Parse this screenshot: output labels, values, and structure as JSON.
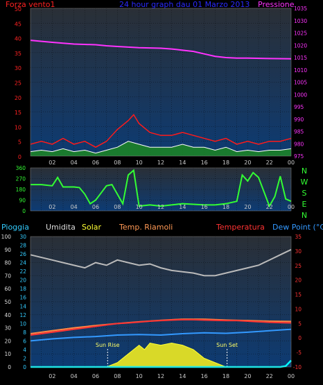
{
  "header": {
    "left_label": "Forza vento1",
    "title": "24 hour graph dau  01 Marzo 2013",
    "right_label": "Pressione"
  },
  "legend": {
    "pioggia": "Pioggia",
    "umidita": "Umidita",
    "solar": "Solar",
    "temp_riamoli": "Temp. Riamoli",
    "temperatura": "Temperatura",
    "dew_point": "Dew Point (°C)"
  },
  "compass": [
    "N",
    "W",
    "S",
    "E",
    "N"
  ],
  "colors": {
    "wind_gust": "#ff1a1a",
    "wind_avg": "#ffffff",
    "wind_fill": "#1e8c1e",
    "pressure": "#ff33ff",
    "direction": "#33ff33",
    "humidity": "#bbbbbb",
    "temperature": "#ff3333",
    "temp_riamoli": "#ff8844",
    "dew_point": "#3399ff",
    "solar": "#ffff33",
    "rain": "#00ffff",
    "title": "#2a2aff"
  },
  "chart_data": [
    {
      "id": "wind_pressure",
      "type": "line",
      "x_label_ticks": [
        "02",
        "04",
        "06",
        "08",
        "10",
        "12",
        "14",
        "16",
        "18",
        "20",
        "22",
        "00"
      ],
      "y_left_ticks": [
        0,
        5,
        10,
        15,
        20,
        25,
        30,
        35,
        40,
        45,
        50
      ],
      "y_right_ticks": [
        975,
        980,
        985,
        990,
        995,
        1000,
        1005,
        1010,
        1015,
        1020,
        1025,
        1030,
        1035
      ],
      "ylim_left": [
        0,
        50
      ],
      "ylim_right": [
        975,
        1035
      ],
      "xlim": [
        0,
        24
      ],
      "series": [
        {
          "name": "Pressione",
          "axis": "right",
          "x": [
            0,
            2,
            4,
            6,
            7,
            8,
            10,
            12,
            13,
            14,
            15,
            16,
            17,
            18,
            19,
            20,
            22,
            24
          ],
          "y": [
            1022,
            1021.2,
            1020.5,
            1020.2,
            1019.8,
            1019.5,
            1019,
            1018.8,
            1018.5,
            1018,
            1017.5,
            1016.5,
            1015.5,
            1015,
            1014.8,
            1014.8,
            1014.6,
            1014.5
          ]
        },
        {
          "name": "Forza vento1",
          "axis": "left",
          "x": [
            0,
            1,
            2,
            3,
            4,
            5,
            6,
            7,
            8,
            9,
            9.5,
            10,
            11,
            12,
            13,
            14,
            15,
            16,
            17,
            18,
            19,
            20,
            21,
            22,
            23,
            24
          ],
          "y": [
            4,
            5,
            4,
            6,
            4,
            5,
            3,
            5,
            9,
            12,
            14,
            11,
            8,
            7,
            7,
            8,
            7,
            6,
            5,
            6,
            4,
            5,
            4,
            5,
            5,
            6
          ]
        },
        {
          "name": "wind avg",
          "axis": "left",
          "x": [
            0,
            1,
            2,
            3,
            4,
            5,
            6,
            7,
            8,
            9,
            10,
            11,
            12,
            13,
            14,
            15,
            16,
            17,
            18,
            19,
            20,
            21,
            22,
            23,
            24
          ],
          "y": [
            1.5,
            2,
            1.5,
            2.5,
            1.5,
            2,
            1,
            2,
            3,
            5,
            4,
            3,
            3,
            3,
            4,
            3,
            3,
            2,
            3,
            1.5,
            2,
            1.5,
            2,
            2,
            2.5
          ]
        }
      ]
    },
    {
      "id": "wind_direction",
      "type": "line",
      "x_label_ticks": [
        "02",
        "04",
        "06",
        "08",
        "10",
        "12",
        "14",
        "16",
        "18",
        "20",
        "22",
        "00"
      ],
      "y_ticks": [
        0,
        90,
        180,
        270,
        360
      ],
      "ylim": [
        0,
        360
      ],
      "xlim": [
        0,
        24
      ],
      "series": [
        {
          "name": "direction",
          "x": [
            0,
            1,
            2,
            2.5,
            3,
            3.5,
            4,
            4.5,
            5,
            5.5,
            6,
            6.5,
            7,
            7.5,
            8,
            8.5,
            9,
            9.5,
            10,
            11,
            12,
            13,
            14,
            15,
            16,
            17,
            18,
            19,
            19.5,
            20,
            20.5,
            21,
            22,
            22.5,
            23,
            23.5,
            24
          ],
          "y": [
            220,
            220,
            210,
            280,
            200,
            200,
            200,
            195,
            140,
            60,
            90,
            150,
            210,
            220,
            140,
            60,
            300,
            340,
            40,
            50,
            40,
            50,
            60,
            55,
            50,
            50,
            60,
            80,
            300,
            250,
            320,
            280,
            40,
            120,
            290,
            100,
            80
          ]
        }
      ]
    },
    {
      "id": "temp_humidity",
      "type": "line",
      "x_label_ticks": [
        "02",
        "04",
        "06",
        "08",
        "10",
        "12",
        "14",
        "16",
        "18",
        "20",
        "22",
        "00"
      ],
      "y_left_ticks": [
        0,
        10,
        20,
        30,
        40,
        50,
        60,
        70,
        80,
        90,
        100
      ],
      "y_left2_ticks": [
        0,
        2,
        4,
        6,
        8,
        10,
        12,
        14,
        16,
        18,
        20,
        22,
        24,
        26,
        28,
        30
      ],
      "y_right_ticks": [
        -10,
        -5,
        0,
        5,
        10,
        15,
        20,
        25,
        30,
        35
      ],
      "ylim_left": [
        0,
        100
      ],
      "ylim_right": [
        -10,
        35
      ],
      "xlim": [
        0,
        24
      ],
      "annotations": [
        "Sun Rise",
        "Sun Set"
      ],
      "annotation_x": [
        7.1,
        18.1
      ],
      "series": [
        {
          "name": "Umidita",
          "axis": "left",
          "x": [
            0,
            1,
            2,
            3,
            4,
            5,
            6,
            7,
            8,
            9,
            10,
            11,
            12,
            13,
            14,
            15,
            16,
            17,
            18,
            19,
            20,
            21,
            22,
            23,
            24
          ],
          "y": [
            86,
            84,
            82,
            80,
            78,
            76,
            80,
            78,
            82,
            80,
            78,
            79,
            76,
            74,
            73,
            72,
            70,
            70,
            72,
            74,
            76,
            78,
            82,
            86,
            90
          ]
        },
        {
          "name": "Temperatura",
          "axis": "right",
          "x": [
            0,
            1,
            2,
            3,
            4,
            5,
            6,
            7,
            8,
            9,
            10,
            11,
            12,
            13,
            14,
            15,
            16,
            17,
            18,
            19,
            20,
            21,
            22,
            23,
            24
          ],
          "y": [
            1,
            1.5,
            2,
            2.5,
            3,
            3.5,
            4,
            4.5,
            5,
            5.2,
            5.5,
            5.8,
            6,
            6.2,
            6.3,
            6.3,
            6.2,
            6.1,
            6,
            6,
            5.8,
            5.6,
            5.4,
            5.3,
            5.2
          ]
        },
        {
          "name": "Temp. Riamoli",
          "axis": "right",
          "x": [
            0,
            2,
            4,
            6,
            8,
            10,
            12,
            14,
            16,
            18,
            20,
            22,
            24
          ],
          "y": [
            1.5,
            2.5,
            3.5,
            4.3,
            5,
            5.6,
            6.1,
            6.5,
            6.5,
            6.2,
            6,
            5.8,
            5.7
          ]
        },
        {
          "name": "Dew Point (°C)",
          "axis": "right",
          "x": [
            0,
            2,
            4,
            6,
            8,
            10,
            12,
            14,
            16,
            18,
            20,
            22,
            24
          ],
          "y": [
            -1,
            -0.3,
            0.2,
            0.5,
            1,
            1.2,
            1,
            1.5,
            1.8,
            1.6,
            2,
            2.5,
            3
          ]
        },
        {
          "name": "Solar",
          "axis": "left2",
          "x": [
            7,
            8,
            9,
            10,
            10.5,
            11,
            12,
            13,
            14,
            15,
            16,
            17,
            18
          ],
          "y": [
            0,
            1,
            3,
            5,
            4,
            5.5,
            5,
            5.5,
            5,
            4,
            2,
            1,
            0
          ]
        },
        {
          "name": "Pioggia",
          "axis": "left2",
          "x": [
            0,
            23,
            23.5,
            24
          ],
          "y": [
            0,
            0,
            0.2,
            1.5
          ]
        }
      ]
    }
  ]
}
